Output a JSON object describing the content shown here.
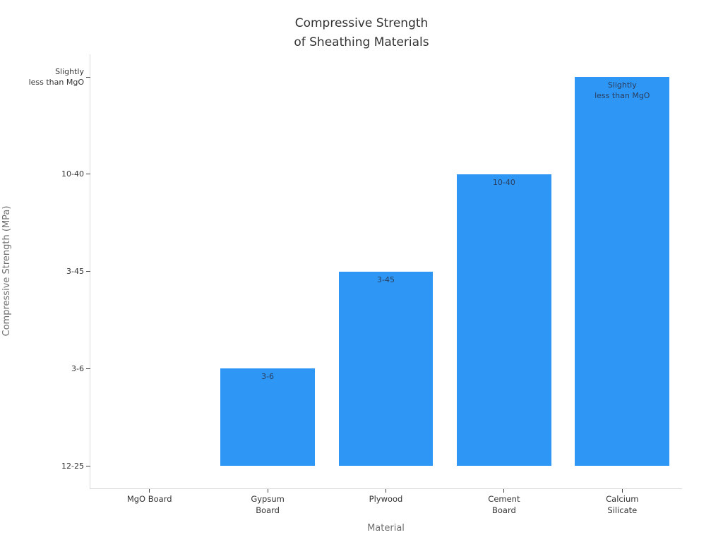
{
  "chart_data": {
    "type": "bar",
    "title": "Compressive Strength of Sheathing Materials",
    "title_lines": [
      "Compressive Strength",
      "of Sheathing Materials"
    ],
    "xlabel": "Material",
    "ylabel": "Compressive Strength (MPa)",
    "orientation": "vertical",
    "grid": false,
    "legend_position": "none",
    "y_axis_type": "category",
    "categories": [
      "MgO Board",
      "Gypsum Board",
      "Plywood",
      "Cement Board",
      "Calcium Silicate"
    ],
    "x_tick_lines": [
      [
        "MgO Board"
      ],
      [
        "Gypsum",
        "Board"
      ],
      [
        "Plywood"
      ],
      [
        "Cement",
        "Board"
      ],
      [
        "Calcium",
        "Silicate"
      ]
    ],
    "y_categories": [
      "12-25",
      "3-6",
      "3-45",
      "10-40",
      "Slightly less than MgO"
    ],
    "y_tick_lines": [
      [
        "12-25"
      ],
      [
        "3-6"
      ],
      [
        "3-45"
      ],
      [
        "10-40"
      ],
      [
        "Slightly",
        "less than MgO"
      ]
    ],
    "values": [
      "12-25",
      "3-6",
      "3-45",
      "10-40",
      "Slightly less than MgO"
    ],
    "value_category_index": [
      0,
      1,
      2,
      3,
      4
    ],
    "bar_label_lines": [
      [],
      [
        "3-6"
      ],
      [
        "3-45"
      ],
      [
        "10-40"
      ],
      [
        "Slightly",
        "less than MgO"
      ]
    ],
    "colors": {
      "bar": "#2e96f5",
      "bar_label_text": "#2a3f5f",
      "tick_label_text": "#333333",
      "axis_title_text": "#6f6f6f",
      "title_text": "#333333",
      "axis_line": "#d9d9d9",
      "tick_mark": "#444444",
      "background": "#ffffff"
    }
  }
}
